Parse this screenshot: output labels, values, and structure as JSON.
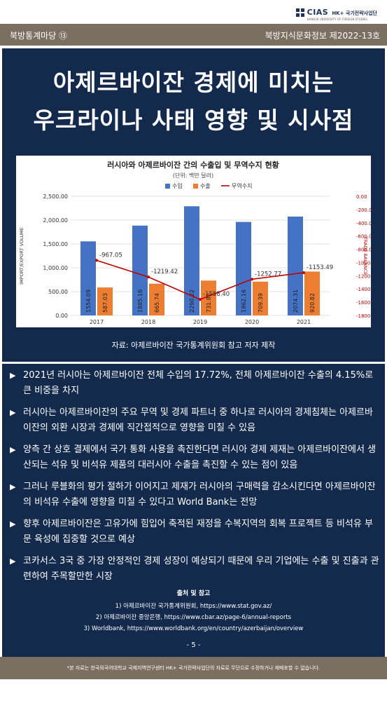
{
  "logo": {
    "mark": "CIAS",
    "title": "HK+ 국가전략사업단",
    "subtitle": "HANKUK UNIVERSITY OF FOREIGN STUDIES"
  },
  "header": {
    "series_label": "북방통계마당 ⑬",
    "issue_label": "북방지식문화정보 제2022-13호"
  },
  "title": {
    "line1": "아제르바이잔 경제에 미치는",
    "line2": "우크라이나 사태 영향 및 시사점"
  },
  "chart_data": {
    "type": "bar",
    "title": "러시아와 아제르바이잔 간의 수출입 및 무역수지 현황",
    "subtitle": "(단위: 백만 달러)",
    "categories": [
      "2017",
      "2018",
      "2019",
      "2020",
      "2021"
    ],
    "series": [
      {
        "name": "수입",
        "type": "bar",
        "axis": "left",
        "color": "#4472c4",
        "values": [
          1554.09,
          1885.16,
          2290.22,
          1962.16,
          2074.31
        ],
        "labels": [
          "1554.09",
          "1885.16",
          "2290.22",
          "1962.16",
          "2074.31"
        ]
      },
      {
        "name": "수출",
        "type": "bar",
        "axis": "left",
        "color": "#ed7d31",
        "values": [
          587.03,
          665.74,
          731.82,
          709.39,
          920.82
        ],
        "labels": [
          "587.03",
          "665.74",
          "731.82",
          "709.39",
          "920.82"
        ]
      },
      {
        "name": "무역수지",
        "type": "line",
        "axis": "right",
        "color": "#c00000",
        "values": [
          -967.05,
          -1219.42,
          -1558.4,
          -1252.77,
          -1153.49
        ],
        "labels": [
          "-967.05",
          "-1219.42",
          "-1558.40",
          "-1252.77",
          "-1153.49"
        ]
      }
    ],
    "ylabel": "IMPORT/EXPORT VOLUME",
    "y2label": "TRADE BALANCE",
    "ylim": [
      0,
      2500
    ],
    "y2lim": [
      -1800,
      0
    ],
    "yticks": [
      "0.00",
      "500.00",
      "1,000.00",
      "1,500.00",
      "2,000.00",
      "2,500.00"
    ],
    "y2ticks": [
      "0.00",
      "-200.00",
      "-400.00",
      "-600.00",
      "-800.00",
      "-1000.00",
      "-1200.00",
      "-1400.00",
      "-1600.00",
      "-1800.00"
    ],
    "legend": "top-center",
    "grid": true
  },
  "source": "자료: 아제르바이잔 국가통계위원회 참고 저자 제작",
  "bullets": [
    {
      "arrow": "▶",
      "text": "2021년 러시아는 아제르바이잔 전체 수입의 17.72%, 전체 아제르바이잔 수출의 4.15%로 큰 비중을 차지"
    },
    {
      "arrow": "▶",
      "text": "러시아는 아제르바이잔의 주요 무역 및 경제 파트너 중 하나로 러시아의 경제침체는 아제르바이잔의 외환 시장과 경제에 직간접적으로 영향을 미칠 수 있음"
    },
    {
      "arrow": "▶",
      "text": "양측 간 상호 결제에서 국가 통화 사용을 촉진한다면 러시아 경제 제재는 아제르바이잔에서 생산되는 석유 및 비석유 제품의 대러시아 수출을 촉진할 수 있는 점이 있음"
    },
    {
      "arrow": "▶",
      "text": "그러나 루블화의 평가 절하가 이어지고 제재가 러시아의 구매력을 감소시킨다면 아제르바이잔의 비석유 수출에 영향을 미칠 수 있다고 World Bank는 전망"
    },
    {
      "arrow": "▶",
      "text": "향후 아제르바이잔은 고유가에 힘입어 축적된 재정을 수복지역의 회복 프로젝트 등 비석유 부문 육성에 집중할 것으로 예상"
    },
    {
      "arrow": "▶",
      "text": "코카서스 3국 중 가장 안정적인 경제 성장이 예상되기 때문에 우리 기업에는 수출 및 진출과 관련하여 주목할만한 시장"
    }
  ],
  "references": {
    "title": "출처 및 참고",
    "items": [
      "1) 아제르바이잔 국가통계위원회, https://www.stat.gov.az/",
      "2) 아제르바이잔 중앙은행, https://www.cbar.az/page-6/annual-reports",
      "3) Worldbank, https://www.worldbank.org/en/country/azerbaijan/overview"
    ]
  },
  "page_number": "- 5 -",
  "footer": "*본 자료는 한국외국어대학교 국제지역연구센터 HK+ 국가전략사업단의 자료로 무단으로 수정하거나 재배포할 수 없습니다.",
  "colors": {
    "navy": "#142a4c",
    "taupe": "#7b6f62",
    "import": "#4472c4",
    "export": "#ed7d31",
    "balance": "#c00000"
  }
}
